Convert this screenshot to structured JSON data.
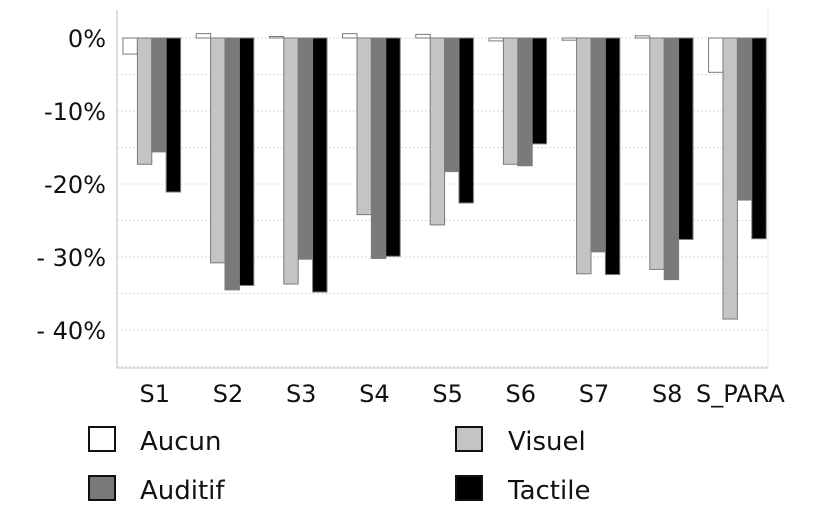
{
  "chart_data": {
    "type": "bar",
    "title": "",
    "xlabel": "",
    "ylabel": "",
    "categories": [
      "S1",
      "S2",
      "S3",
      "S4",
      "S5",
      "S6",
      "S7",
      "S8",
      "S_PARA"
    ],
    "series": [
      {
        "name": "Aucun",
        "color": "#ffffff",
        "values": [
          -2.2,
          0.6,
          0.2,
          0.6,
          0.5,
          -0.4,
          -0.3,
          0.3,
          -4.7
        ]
      },
      {
        "name": "Visuel",
        "color": "#c4c4c4",
        "values": [
          -17.3,
          -30.8,
          -33.7,
          -24.2,
          -25.6,
          -17.3,
          -32.3,
          -31.7,
          -38.5
        ]
      },
      {
        "name": "Auditif",
        "color": "#7a7a7a",
        "values": [
          -15.6,
          -34.5,
          -30.3,
          -30.2,
          -18.3,
          -17.5,
          -29.3,
          -33.1,
          -22.2
        ]
      },
      {
        "name": "Tactile",
        "color": "#000000",
        "values": [
          -21.1,
          -33.9,
          -34.8,
          -29.9,
          -22.6,
          -14.5,
          -32.4,
          -27.6,
          -27.5
        ]
      }
    ],
    "ylim": [
      -45,
      4
    ],
    "yticks": [
      0,
      -10,
      -20,
      -30,
      -40
    ],
    "ytick_labels": [
      "0%",
      "-10%",
      "-20%",
      "- 30%",
      "- 40%"
    ],
    "grid": true,
    "legend_position": "bottom"
  }
}
